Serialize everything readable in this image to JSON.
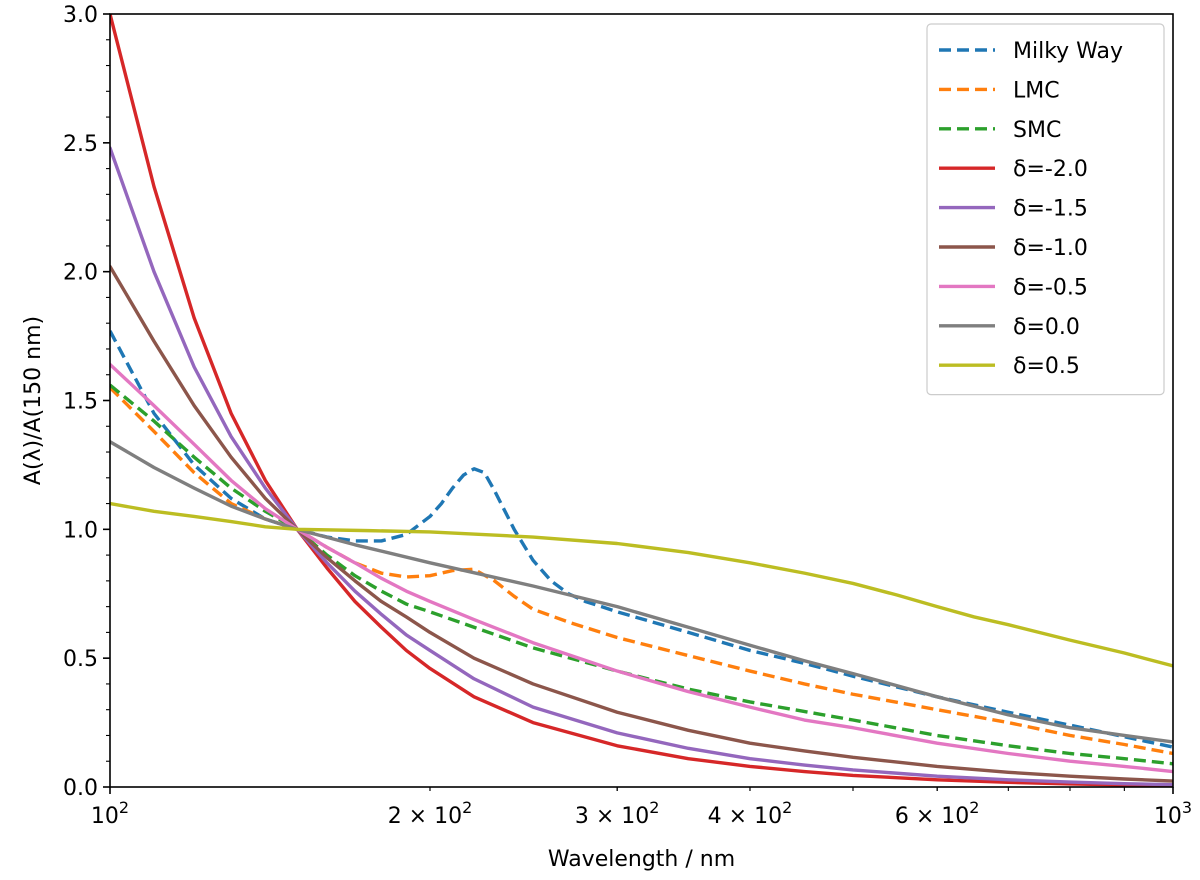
{
  "chart_data": {
    "type": "line",
    "title": "",
    "xlabel": "Wavelength / nm",
    "ylabel": "A(λ)/A(150 nm)",
    "xscale": "log",
    "xlim": [
      100,
      1000
    ],
    "ylim": [
      0.0,
      3.0
    ],
    "grid": false,
    "legend_position": "top-right",
    "x_ticks": [
      {
        "value": 100,
        "base": "10",
        "exp": "2",
        "mant": ""
      },
      {
        "value": 200,
        "base": "10",
        "exp": "2",
        "mant": "2 × "
      },
      {
        "value": 300,
        "base": "10",
        "exp": "2",
        "mant": "3 × "
      },
      {
        "value": 400,
        "base": "10",
        "exp": "2",
        "mant": "4 × "
      },
      {
        "value": 600,
        "base": "10",
        "exp": "2",
        "mant": "6 × "
      },
      {
        "value": 1000,
        "base": "10",
        "exp": "3",
        "mant": ""
      }
    ],
    "y_ticks": [
      "0.0",
      "0.5",
      "1.0",
      "1.5",
      "2.0",
      "2.5",
      "3.0"
    ],
    "series": [
      {
        "name": "Milky Way",
        "color": "#1f77b4",
        "dash": true,
        "x": [
          100,
          110,
          120,
          130,
          140,
          150,
          160,
          170,
          180,
          190,
          200,
          205,
          210,
          215,
          220,
          225,
          230,
          240,
          250,
          260,
          270,
          280,
          290,
          300,
          350,
          400,
          450,
          500,
          600,
          700,
          800,
          900,
          1000
        ],
        "y": [
          1.77,
          1.45,
          1.25,
          1.12,
          1.04,
          1.0,
          0.97,
          0.955,
          0.955,
          0.98,
          1.05,
          1.1,
          1.16,
          1.21,
          1.235,
          1.22,
          1.15,
          1.0,
          0.88,
          0.8,
          0.75,
          0.72,
          0.7,
          0.68,
          0.6,
          0.53,
          0.48,
          0.43,
          0.35,
          0.29,
          0.24,
          0.195,
          0.155
        ]
      },
      {
        "name": "LMC",
        "color": "#ff7f0e",
        "dash": true,
        "x": [
          100,
          110,
          120,
          130,
          140,
          150,
          160,
          170,
          180,
          190,
          200,
          210,
          220,
          230,
          240,
          250,
          270,
          300,
          350,
          400,
          450,
          500,
          600,
          700,
          800,
          900,
          1000
        ],
        "y": [
          1.55,
          1.38,
          1.22,
          1.1,
          1.04,
          1.0,
          0.93,
          0.87,
          0.83,
          0.815,
          0.82,
          0.84,
          0.845,
          0.8,
          0.74,
          0.69,
          0.64,
          0.58,
          0.51,
          0.45,
          0.4,
          0.36,
          0.3,
          0.25,
          0.2,
          0.165,
          0.13
        ]
      },
      {
        "name": "SMC",
        "color": "#2ca02c",
        "dash": true,
        "x": [
          100,
          110,
          120,
          130,
          140,
          150,
          160,
          170,
          180,
          190,
          200,
          220,
          250,
          300,
          350,
          400,
          500,
          600,
          700,
          800,
          900,
          1000
        ],
        "y": [
          1.56,
          1.42,
          1.28,
          1.16,
          1.07,
          1.0,
          0.9,
          0.82,
          0.76,
          0.71,
          0.68,
          0.62,
          0.54,
          0.45,
          0.38,
          0.33,
          0.26,
          0.2,
          0.16,
          0.13,
          0.11,
          0.09
        ]
      },
      {
        "name": "δ=-2.0",
        "color": "#d62728",
        "dash": false,
        "x": [
          100,
          110,
          120,
          130,
          140,
          150,
          160,
          170,
          180,
          190,
          200,
          220,
          250,
          300,
          350,
          400,
          450,
          500,
          600,
          700,
          800,
          900,
          1000
        ],
        "y": [
          3.0,
          2.33,
          1.82,
          1.45,
          1.19,
          1.0,
          0.85,
          0.72,
          0.62,
          0.53,
          0.46,
          0.35,
          0.25,
          0.16,
          0.11,
          0.08,
          0.06,
          0.045,
          0.028,
          0.018,
          0.012,
          0.008,
          0.005
        ]
      },
      {
        "name": "δ=-1.5",
        "color": "#9467bd",
        "dash": false,
        "x": [
          100,
          110,
          120,
          130,
          140,
          150,
          160,
          170,
          180,
          190,
          200,
          220,
          250,
          300,
          350,
          400,
          450,
          500,
          600,
          700,
          800,
          900,
          1000
        ],
        "y": [
          2.48,
          2.0,
          1.63,
          1.36,
          1.16,
          1.0,
          0.87,
          0.76,
          0.67,
          0.59,
          0.53,
          0.42,
          0.31,
          0.21,
          0.15,
          0.11,
          0.085,
          0.066,
          0.042,
          0.028,
          0.019,
          0.013,
          0.009
        ]
      },
      {
        "name": "δ=-1.0",
        "color": "#8c564b",
        "dash": false,
        "x": [
          100,
          110,
          120,
          130,
          140,
          150,
          160,
          170,
          180,
          190,
          200,
          220,
          250,
          300,
          350,
          400,
          450,
          500,
          600,
          700,
          800,
          900,
          1000
        ],
        "y": [
          2.02,
          1.73,
          1.48,
          1.28,
          1.12,
          1.0,
          0.89,
          0.8,
          0.72,
          0.66,
          0.6,
          0.5,
          0.4,
          0.29,
          0.22,
          0.17,
          0.14,
          0.115,
          0.08,
          0.057,
          0.042,
          0.031,
          0.023
        ]
      },
      {
        "name": "δ=-0.5",
        "color": "#e377c2",
        "dash": false,
        "x": [
          100,
          110,
          120,
          130,
          140,
          150,
          160,
          170,
          180,
          190,
          200,
          220,
          250,
          300,
          350,
          400,
          450,
          500,
          600,
          700,
          800,
          900,
          1000
        ],
        "y": [
          1.64,
          1.48,
          1.33,
          1.19,
          1.08,
          1.0,
          0.93,
          0.87,
          0.81,
          0.76,
          0.72,
          0.65,
          0.56,
          0.45,
          0.37,
          0.31,
          0.26,
          0.23,
          0.17,
          0.13,
          0.1,
          0.08,
          0.06
        ]
      },
      {
        "name": "δ=0.0",
        "color": "#7f7f7f",
        "dash": false,
        "x": [
          100,
          110,
          120,
          130,
          140,
          150,
          170,
          200,
          250,
          300,
          350,
          400,
          450,
          500,
          600,
          700,
          800,
          900,
          1000
        ],
        "y": [
          1.34,
          1.24,
          1.16,
          1.09,
          1.04,
          1.0,
          0.94,
          0.87,
          0.78,
          0.7,
          0.62,
          0.55,
          0.49,
          0.44,
          0.35,
          0.28,
          0.23,
          0.2,
          0.175
        ]
      },
      {
        "name": "δ=0.5",
        "color": "#bcbd22",
        "dash": false,
        "x": [
          100,
          110,
          120,
          130,
          140,
          150,
          175,
          200,
          250,
          300,
          350,
          400,
          450,
          500,
          550,
          600,
          650,
          700,
          800,
          900,
          1000
        ],
        "y": [
          1.1,
          1.07,
          1.05,
          1.03,
          1.01,
          1.0,
          0.995,
          0.99,
          0.97,
          0.945,
          0.91,
          0.87,
          0.83,
          0.79,
          0.745,
          0.7,
          0.66,
          0.63,
          0.57,
          0.52,
          0.47
        ]
      }
    ]
  }
}
